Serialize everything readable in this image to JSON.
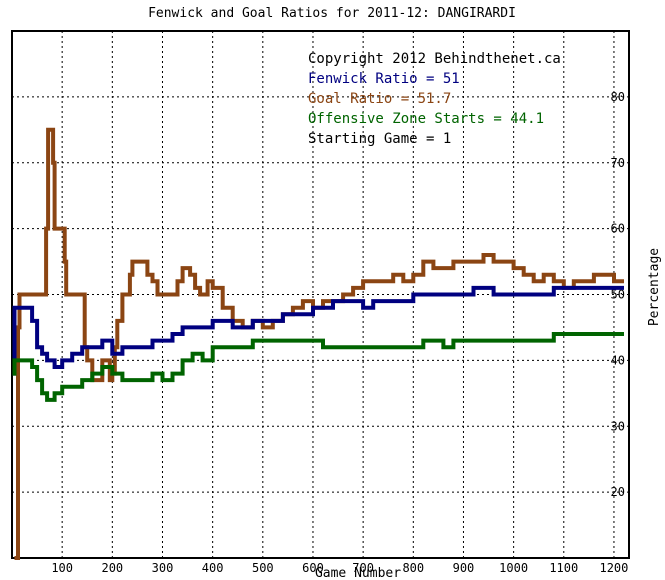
{
  "chart_data": {
    "type": "line",
    "title": "Fenwick and Goal Ratios for 2011-12: DANGIRARDI",
    "xlabel": "Game Number",
    "ylabel": "Percentage",
    "xlim": [
      0,
      1230
    ],
    "ylim": [
      10,
      90
    ],
    "x_ticks": [
      100,
      200,
      300,
      400,
      500,
      600,
      700,
      800,
      900,
      1000,
      1100,
      1200
    ],
    "y_ticks": [
      20,
      30,
      40,
      50,
      60,
      70,
      80
    ],
    "grid": true,
    "legend_position": "top-right",
    "annotations": [
      {
        "text": "Copyright 2012 Behindthenet.ca",
        "color": "#000000"
      },
      {
        "text": "Fenwick Ratio = 51",
        "color": "#000080"
      },
      {
        "text": "Goal Ratio = 51.7",
        "color": "#8b4513"
      },
      {
        "text": "Offensive Zone Starts = 44.1",
        "color": "#006400"
      },
      {
        "text": "Starting Game = 1",
        "color": "#000000"
      }
    ],
    "series": [
      {
        "key": "goal",
        "color": "#8b4513",
        "points": [
          [
            5,
            10
          ],
          [
            10,
            10
          ],
          [
            12,
            45
          ],
          [
            15,
            50
          ],
          [
            20,
            50
          ],
          [
            40,
            50
          ],
          [
            60,
            50
          ],
          [
            68,
            60
          ],
          [
            72,
            75
          ],
          [
            78,
            75
          ],
          [
            82,
            70
          ],
          [
            85,
            60
          ],
          [
            100,
            60
          ],
          [
            105,
            55
          ],
          [
            108,
            50
          ],
          [
            140,
            50
          ],
          [
            145,
            42
          ],
          [
            150,
            40
          ],
          [
            160,
            37
          ],
          [
            170,
            37
          ],
          [
            180,
            40
          ],
          [
            190,
            40
          ],
          [
            195,
            37
          ],
          [
            200,
            38
          ],
          [
            205,
            42
          ],
          [
            210,
            46
          ],
          [
            220,
            50
          ],
          [
            230,
            50
          ],
          [
            235,
            53
          ],
          [
            240,
            55
          ],
          [
            260,
            55
          ],
          [
            270,
            53
          ],
          [
            280,
            52
          ],
          [
            290,
            50
          ],
          [
            320,
            50
          ],
          [
            330,
            52
          ],
          [
            340,
            54
          ],
          [
            355,
            53
          ],
          [
            365,
            51
          ],
          [
            375,
            50
          ],
          [
            390,
            52
          ],
          [
            400,
            51
          ],
          [
            420,
            48
          ],
          [
            440,
            46
          ],
          [
            460,
            45
          ],
          [
            480,
            46
          ],
          [
            500,
            45
          ],
          [
            520,
            46
          ],
          [
            540,
            47
          ],
          [
            560,
            48
          ],
          [
            580,
            49
          ],
          [
            600,
            48
          ],
          [
            620,
            49
          ],
          [
            640,
            49
          ],
          [
            660,
            50
          ],
          [
            680,
            51
          ],
          [
            700,
            52
          ],
          [
            720,
            52
          ],
          [
            740,
            52
          ],
          [
            760,
            53
          ],
          [
            780,
            52
          ],
          [
            800,
            53
          ],
          [
            820,
            55
          ],
          [
            840,
            54
          ],
          [
            860,
            54
          ],
          [
            880,
            55
          ],
          [
            900,
            55
          ],
          [
            920,
            55
          ],
          [
            940,
            56
          ],
          [
            960,
            55
          ],
          [
            980,
            55
          ],
          [
            1000,
            54
          ],
          [
            1020,
            53
          ],
          [
            1040,
            52
          ],
          [
            1060,
            53
          ],
          [
            1080,
            52
          ],
          [
            1100,
            51
          ],
          [
            1120,
            52
          ],
          [
            1140,
            52
          ],
          [
            1160,
            53
          ],
          [
            1180,
            53
          ],
          [
            1200,
            52
          ],
          [
            1220,
            52
          ]
        ]
      },
      {
        "key": "fenwick",
        "color": "#000080",
        "points": [
          [
            1,
            38
          ],
          [
            5,
            48
          ],
          [
            30,
            48
          ],
          [
            40,
            46
          ],
          [
            50,
            42
          ],
          [
            60,
            41
          ],
          [
            70,
            40
          ],
          [
            85,
            39
          ],
          [
            100,
            40
          ],
          [
            120,
            41
          ],
          [
            140,
            42
          ],
          [
            160,
            42
          ],
          [
            180,
            43
          ],
          [
            200,
            41
          ],
          [
            220,
            42
          ],
          [
            240,
            42
          ],
          [
            260,
            42
          ],
          [
            280,
            43
          ],
          [
            300,
            43
          ],
          [
            320,
            44
          ],
          [
            340,
            45
          ],
          [
            360,
            45
          ],
          [
            380,
            45
          ],
          [
            400,
            46
          ],
          [
            420,
            46
          ],
          [
            440,
            45
          ],
          [
            460,
            45
          ],
          [
            480,
            46
          ],
          [
            500,
            46
          ],
          [
            520,
            46
          ],
          [
            540,
            47
          ],
          [
            560,
            47
          ],
          [
            580,
            47
          ],
          [
            600,
            48
          ],
          [
            620,
            48
          ],
          [
            640,
            49
          ],
          [
            660,
            49
          ],
          [
            680,
            49
          ],
          [
            700,
            48
          ],
          [
            720,
            49
          ],
          [
            740,
            49
          ],
          [
            760,
            49
          ],
          [
            780,
            49
          ],
          [
            800,
            50
          ],
          [
            820,
            50
          ],
          [
            840,
            50
          ],
          [
            860,
            50
          ],
          [
            880,
            50
          ],
          [
            900,
            50
          ],
          [
            920,
            51
          ],
          [
            940,
            51
          ],
          [
            960,
            50
          ],
          [
            980,
            50
          ],
          [
            1000,
            50
          ],
          [
            1020,
            50
          ],
          [
            1040,
            50
          ],
          [
            1060,
            50
          ],
          [
            1080,
            51
          ],
          [
            1100,
            51
          ],
          [
            1120,
            51
          ],
          [
            1140,
            51
          ],
          [
            1160,
            51
          ],
          [
            1180,
            51
          ],
          [
            1200,
            51
          ],
          [
            1220,
            51
          ]
        ]
      },
      {
        "key": "ozs",
        "color": "#006400",
        "points": [
          [
            1,
            38
          ],
          [
            5,
            40
          ],
          [
            30,
            40
          ],
          [
            40,
            39
          ],
          [
            50,
            37
          ],
          [
            60,
            35
          ],
          [
            70,
            34
          ],
          [
            85,
            35
          ],
          [
            100,
            36
          ],
          [
            120,
            36
          ],
          [
            140,
            37
          ],
          [
            160,
            38
          ],
          [
            180,
            39
          ],
          [
            200,
            38
          ],
          [
            220,
            37
          ],
          [
            240,
            37
          ],
          [
            260,
            37
          ],
          [
            280,
            38
          ],
          [
            300,
            37
          ],
          [
            320,
            38
          ],
          [
            340,
            40
          ],
          [
            360,
            41
          ],
          [
            380,
            40
          ],
          [
            400,
            42
          ],
          [
            420,
            42
          ],
          [
            440,
            42
          ],
          [
            460,
            42
          ],
          [
            480,
            43
          ],
          [
            500,
            43
          ],
          [
            520,
            43
          ],
          [
            540,
            43
          ],
          [
            560,
            43
          ],
          [
            580,
            43
          ],
          [
            600,
            43
          ],
          [
            620,
            42
          ],
          [
            640,
            42
          ],
          [
            660,
            42
          ],
          [
            680,
            42
          ],
          [
            700,
            42
          ],
          [
            720,
            42
          ],
          [
            740,
            42
          ],
          [
            760,
            42
          ],
          [
            780,
            42
          ],
          [
            800,
            42
          ],
          [
            820,
            43
          ],
          [
            840,
            43
          ],
          [
            860,
            42
          ],
          [
            880,
            43
          ],
          [
            900,
            43
          ],
          [
            920,
            43
          ],
          [
            940,
            43
          ],
          [
            960,
            43
          ],
          [
            980,
            43
          ],
          [
            1000,
            43
          ],
          [
            1020,
            43
          ],
          [
            1040,
            43
          ],
          [
            1060,
            43
          ],
          [
            1080,
            44
          ],
          [
            1100,
            44
          ],
          [
            1120,
            44
          ],
          [
            1140,
            44
          ],
          [
            1160,
            44
          ],
          [
            1180,
            44
          ],
          [
            1200,
            44
          ],
          [
            1220,
            44
          ]
        ]
      }
    ]
  }
}
